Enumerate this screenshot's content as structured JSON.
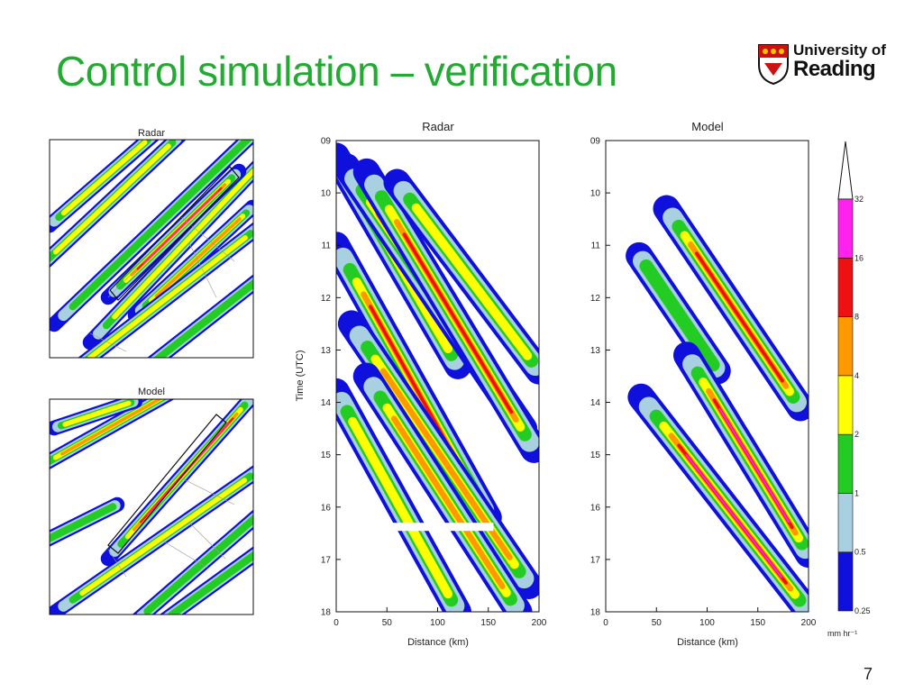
{
  "slide": {
    "title": "Control simulation – verification",
    "page_number": "7",
    "logo": {
      "line1": "University of",
      "line2": "Reading"
    }
  },
  "maps": {
    "radar_title": "Radar",
    "model_title": "Model"
  },
  "hovmoller": {
    "radar_title": "Radar",
    "model_title": "Model",
    "ylabel": "Time (UTC)",
    "xlabel": "Distance (km)"
  },
  "chart_data": [
    {
      "type": "heatmap",
      "title": "Radar",
      "xlabel": "Distance (km)",
      "ylabel": "Time (UTC)",
      "x_ticks": [
        "0",
        "50",
        "100",
        "150",
        "200"
      ],
      "y_ticks": [
        "09",
        "10",
        "11",
        "12",
        "13",
        "14",
        "15",
        "16",
        "17",
        "18"
      ],
      "xlim": [
        0,
        200
      ],
      "ylim": [
        9,
        18
      ],
      "y_inverted": true,
      "missing_data_time": 16.3,
      "bands": [
        {
          "start_x": 0,
          "start_t": 9.3,
          "end_x": 120,
          "end_t": 13.3,
          "peak_class": 3
        },
        {
          "start_x": 10,
          "start_t": 9.5,
          "end_x": 185,
          "end_t": 14.5,
          "peak_class": 4
        },
        {
          "start_x": 30,
          "start_t": 9.6,
          "end_x": 195,
          "end_t": 14.9,
          "peak_class": 5
        },
        {
          "start_x": 60,
          "start_t": 9.8,
          "end_x": 200,
          "end_t": 13.4,
          "peak_class": 3
        },
        {
          "start_x": 0,
          "start_t": 11.0,
          "end_x": 150,
          "end_t": 16.2,
          "peak_class": 5
        },
        {
          "start_x": 15,
          "start_t": 12.5,
          "end_x": 190,
          "end_t": 17.5,
          "peak_class": 4
        },
        {
          "start_x": 30,
          "start_t": 13.5,
          "end_x": 180,
          "end_t": 18.0,
          "peak_class": 4
        },
        {
          "start_x": 0,
          "start_t": 13.8,
          "end_x": 120,
          "end_t": 18.0,
          "peak_class": 3
        }
      ]
    },
    {
      "type": "heatmap",
      "title": "Model",
      "xlabel": "Distance (km)",
      "ylabel": "",
      "x_ticks": [
        "0",
        "50",
        "100",
        "150",
        "200"
      ],
      "y_ticks": [
        "09",
        "10",
        "11",
        "12",
        "13",
        "14",
        "15",
        "16",
        "17",
        "18"
      ],
      "xlim": [
        0,
        200
      ],
      "ylim": [
        9,
        18
      ],
      "y_inverted": true,
      "bands": [
        {
          "start_x": 60,
          "start_t": 10.3,
          "end_x": 192,
          "end_t": 14.1,
          "peak_class": 5
        },
        {
          "start_x": 33,
          "start_t": 11.2,
          "end_x": 110,
          "end_t": 13.4,
          "peak_class": 2
        },
        {
          "start_x": 80,
          "start_t": 13.1,
          "end_x": 200,
          "end_t": 16.9,
          "peak_class": 6
        },
        {
          "start_x": 35,
          "start_t": 13.9,
          "end_x": 200,
          "end_t": 18.0,
          "peak_class": 6
        }
      ]
    },
    {
      "type": "colorbar",
      "unit": "mm hr⁻¹",
      "levels": [
        "0.25",
        "0.5",
        "1",
        "2",
        "4",
        "8",
        "16",
        "32"
      ],
      "colors": [
        "#1010dd",
        "#a8d0e0",
        "#22cc22",
        "#ffff00",
        "#ff9900",
        "#ee1111",
        "#ff22ee"
      ]
    }
  ]
}
